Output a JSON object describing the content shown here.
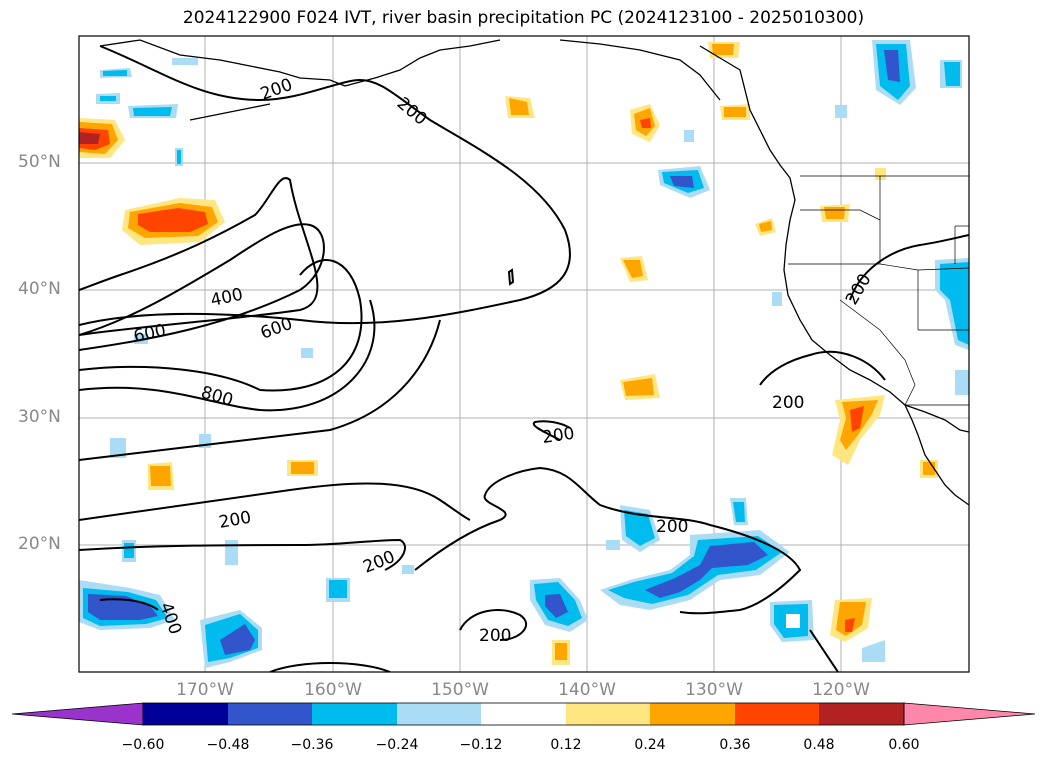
{
  "title": "2024122900 F024 IVT, river basin precipitation PC (2024123100 - 2025010300)",
  "lat_labels": [
    "50°N",
    "40°N",
    "30°N",
    "20°N"
  ],
  "lon_labels": [
    "170°W",
    "160°W",
    "150°W",
    "140°W",
    "130°W",
    "120°W"
  ],
  "contour_labels": [
    "200",
    "200",
    "400",
    "600",
    "600",
    "800",
    "200",
    "200",
    "200",
    "200",
    "200",
    "200",
    "400",
    "200"
  ],
  "colorbar": {
    "ticks": [
      "−0.60",
      "−0.48",
      "−0.36",
      "−0.24",
      "−0.12",
      "0.12",
      "0.24",
      "0.36",
      "0.48",
      "0.60"
    ],
    "colors": [
      "#9933cc",
      "#000099",
      "#3355cc",
      "#00bbee",
      "#aaddf5",
      "#ffffff",
      "#ffe680",
      "#ffa500",
      "#ff4400",
      "#b22222",
      "#ff88aa"
    ]
  }
}
